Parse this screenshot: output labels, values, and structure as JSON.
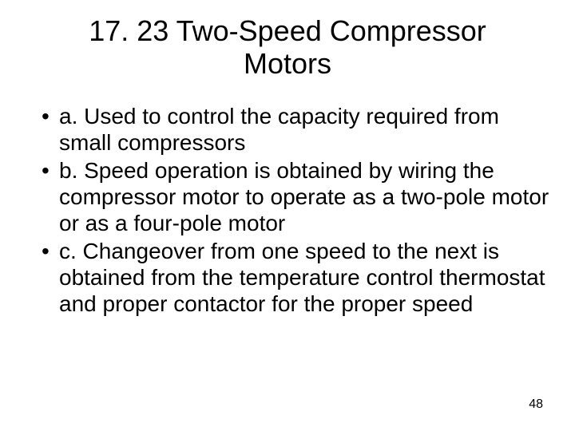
{
  "title": "17. 23 Two-Speed Compressor Motors",
  "title_fontsize": 36,
  "bullets": [
    "a.  Used to control the capacity required from small compressors",
    "b.  Speed operation is obtained by wiring the compressor motor to operate as a two-pole motor or as a four-pole motor",
    "c.  Changeover from one speed to the next is obtained from the temperature control thermostat and proper contactor for the proper speed"
  ],
  "bullet_fontsize": 28,
  "page_number": "48",
  "page_number_fontsize": 16,
  "colors": {
    "background": "#ffffff",
    "text": "#000000"
  }
}
